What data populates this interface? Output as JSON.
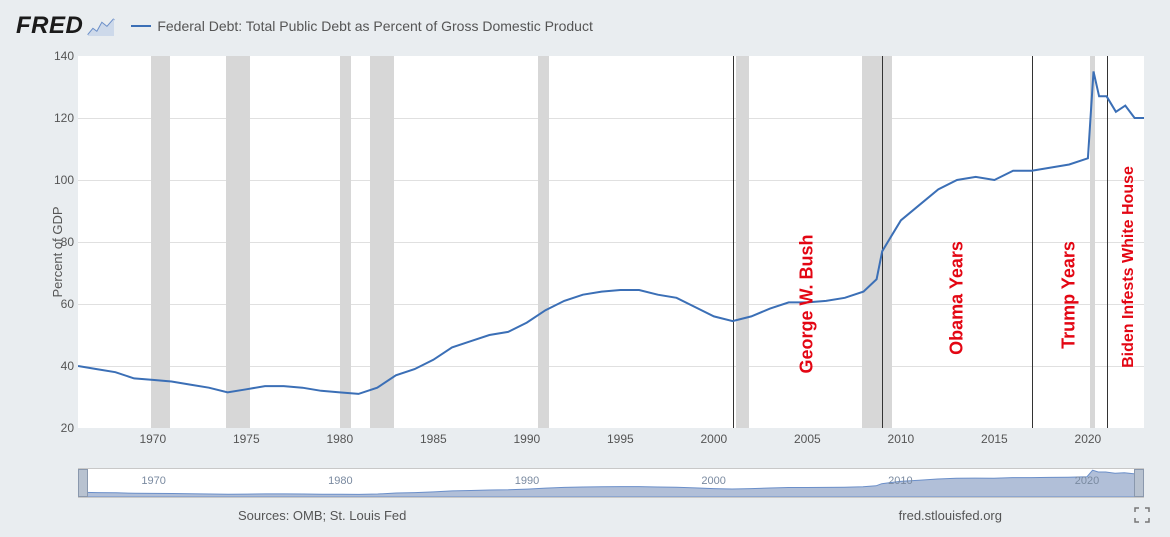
{
  "header": {
    "logo_text": "FRED",
    "legend_text": "Federal Debt: Total Public Debt as Percent of Gross Domestic Product"
  },
  "chart": {
    "type": "line",
    "ylabel": "Percent of GDP",
    "ylim": [
      20,
      140
    ],
    "ytick_step": 20,
    "yticks": [
      20,
      40,
      60,
      80,
      100,
      120,
      140
    ],
    "xlim": [
      1966,
      2023
    ],
    "xticks": [
      1970,
      1975,
      1980,
      1985,
      1990,
      1995,
      2000,
      2005,
      2010,
      2015,
      2020
    ],
    "line_color": "#3b6fb6",
    "line_width": 2,
    "background_color": "#ffffff",
    "grid_color": "#e0e0e0",
    "recession_color": "#d7d7d7",
    "vline_color": "#333333",
    "recessions": [
      {
        "start": 1969.9,
        "end": 1970.9
      },
      {
        "start": 1973.9,
        "end": 1975.2
      },
      {
        "start": 1980.0,
        "end": 1980.6
      },
      {
        "start": 1981.6,
        "end": 1982.9
      },
      {
        "start": 1990.6,
        "end": 1991.2
      },
      {
        "start": 2001.2,
        "end": 2001.9
      },
      {
        "start": 2007.9,
        "end": 2009.5
      },
      {
        "start": 2020.1,
        "end": 2020.4
      }
    ],
    "vlines": [
      2001.0,
      2009.0,
      2017.0,
      2021.0
    ],
    "annotations": [
      {
        "text": "George W. Bush",
        "x": 2005.0,
        "y_center": 60,
        "fontsize": 18,
        "color": "#e30613"
      },
      {
        "text": "Obama Years",
        "x": 2013.0,
        "y_center": 62,
        "fontsize": 18,
        "color": "#e30613"
      },
      {
        "text": "Trump Years",
        "x": 2019.0,
        "y_center": 63,
        "fontsize": 18,
        "color": "#e30613"
      },
      {
        "text": "Biden Infests White House",
        "x": 2022.2,
        "y_center": 72,
        "fontsize": 16,
        "color": "#e30613"
      }
    ],
    "series": [
      {
        "x": 1966,
        "y": 40
      },
      {
        "x": 1967,
        "y": 39
      },
      {
        "x": 1968,
        "y": 38
      },
      {
        "x": 1969,
        "y": 36
      },
      {
        "x": 1970,
        "y": 35.5
      },
      {
        "x": 1971,
        "y": 35
      },
      {
        "x": 1972,
        "y": 34
      },
      {
        "x": 1973,
        "y": 33
      },
      {
        "x": 1974,
        "y": 31.5
      },
      {
        "x": 1975,
        "y": 32.5
      },
      {
        "x": 1976,
        "y": 33.5
      },
      {
        "x": 1977,
        "y": 33.5
      },
      {
        "x": 1978,
        "y": 33
      },
      {
        "x": 1979,
        "y": 32
      },
      {
        "x": 1980,
        "y": 31.5
      },
      {
        "x": 1981,
        "y": 31
      },
      {
        "x": 1982,
        "y": 33
      },
      {
        "x": 1983,
        "y": 37
      },
      {
        "x": 1984,
        "y": 39
      },
      {
        "x": 1985,
        "y": 42
      },
      {
        "x": 1986,
        "y": 46
      },
      {
        "x": 1987,
        "y": 48
      },
      {
        "x": 1988,
        "y": 50
      },
      {
        "x": 1989,
        "y": 51
      },
      {
        "x": 1990,
        "y": 54
      },
      {
        "x": 1991,
        "y": 58
      },
      {
        "x": 1992,
        "y": 61
      },
      {
        "x": 1993,
        "y": 63
      },
      {
        "x": 1994,
        "y": 64
      },
      {
        "x": 1995,
        "y": 64.5
      },
      {
        "x": 1996,
        "y": 64.5
      },
      {
        "x": 1997,
        "y": 63
      },
      {
        "x": 1998,
        "y": 62
      },
      {
        "x": 1999,
        "y": 59
      },
      {
        "x": 2000,
        "y": 56
      },
      {
        "x": 2001,
        "y": 54.5
      },
      {
        "x": 2002,
        "y": 56
      },
      {
        "x": 2003,
        "y": 58.5
      },
      {
        "x": 2004,
        "y": 60.5
      },
      {
        "x": 2005,
        "y": 60.5
      },
      {
        "x": 2006,
        "y": 61
      },
      {
        "x": 2007,
        "y": 62
      },
      {
        "x": 2008,
        "y": 64
      },
      {
        "x": 2008.7,
        "y": 68
      },
      {
        "x": 2009,
        "y": 77
      },
      {
        "x": 2009.5,
        "y": 82
      },
      {
        "x": 2010,
        "y": 87
      },
      {
        "x": 2011,
        "y": 92
      },
      {
        "x": 2012,
        "y": 97
      },
      {
        "x": 2013,
        "y": 100
      },
      {
        "x": 2014,
        "y": 101
      },
      {
        "x": 2015,
        "y": 100
      },
      {
        "x": 2016,
        "y": 103
      },
      {
        "x": 2017,
        "y": 103
      },
      {
        "x": 2018,
        "y": 104
      },
      {
        "x": 2019,
        "y": 105
      },
      {
        "x": 2020,
        "y": 107
      },
      {
        "x": 2020.3,
        "y": 135
      },
      {
        "x": 2020.6,
        "y": 127
      },
      {
        "x": 2021,
        "y": 127
      },
      {
        "x": 2021.5,
        "y": 122
      },
      {
        "x": 2022,
        "y": 124
      },
      {
        "x": 2022.5,
        "y": 120
      },
      {
        "x": 2023,
        "y": 120
      }
    ]
  },
  "overview": {
    "fill_color": "#90a4c8",
    "border_color": "#c8c8c8",
    "xticks": [
      1970,
      1980,
      1990,
      2000,
      2010,
      2020
    ],
    "tick_color": "#7a8aa0"
  },
  "footer": {
    "source_text": "Sources: OMB; St. Louis Fed",
    "url_text": "fred.stlouisfed.org"
  }
}
